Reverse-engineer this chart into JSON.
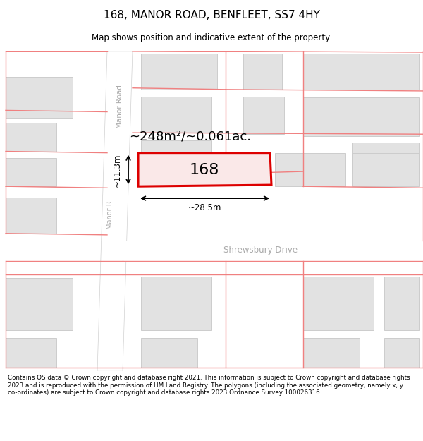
{
  "title": "168, MANOR ROAD, BENFLEET, SS7 4HY",
  "subtitle": "Map shows position and indicative extent of the property.",
  "footer": "Contains OS data © Crown copyright and database right 2021. This information is subject to Crown copyright and database rights 2023 and is reproduced with the permission of HM Land Registry. The polygons (including the associated geometry, namely x, y co-ordinates) are subject to Crown copyright and database rights 2023 Ordnance Survey 100026316.",
  "map_bg": "#efefef",
  "road_color": "#ffffff",
  "block_color": "#e2e2e2",
  "block_border": "#cccccc",
  "red_color": "#dd0000",
  "pink_color": "#f08080",
  "area_label": "~248m²/~0.061ac.",
  "number_label": "168",
  "width_label": "~28.5m",
  "height_label": "~11.3m",
  "road_label_manor_top": "Manor Road",
  "road_label_manor_bot": "Manor R",
  "road_label_shrewsbury": "Shrewsbury Drive"
}
